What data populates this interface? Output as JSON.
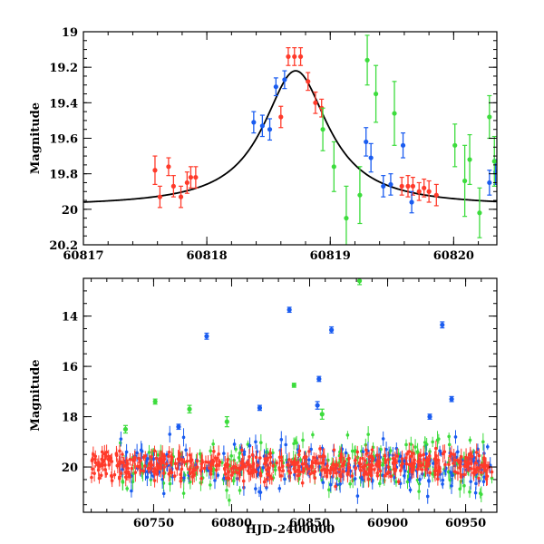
{
  "chart_data": [
    {
      "id": "top",
      "type": "scatter",
      "xlabel": "",
      "ylabel": "Magnitude",
      "xlim": [
        60817,
        60820.35
      ],
      "ylim": [
        19.0,
        20.2
      ],
      "y_inverted": true,
      "x_major_ticks": [
        60817,
        60818,
        60819,
        60820
      ],
      "x_minor_step": 0.2,
      "y_major_ticks": [
        19,
        19.2,
        19.4,
        19.6,
        19.8,
        20,
        20.2
      ],
      "y_minor_step": 0.05,
      "model_curve": {
        "name": "model",
        "color": "#000000",
        "t0": 60818.72,
        "peak_mag": 19.22,
        "base_mag": 19.985,
        "width": 0.32
      },
      "series": [
        {
          "name": "red",
          "color": "#ff3a2a",
          "points": [
            {
              "x": 60817.58,
              "y": 19.78,
              "err": 0.08
            },
            {
              "x": 60817.62,
              "y": 19.93,
              "err": 0.06
            },
            {
              "x": 60817.69,
              "y": 19.76,
              "err": 0.05
            },
            {
              "x": 60817.73,
              "y": 19.87,
              "err": 0.06
            },
            {
              "x": 60817.79,
              "y": 19.93,
              "err": 0.06
            },
            {
              "x": 60817.84,
              "y": 19.85,
              "err": 0.06
            },
            {
              "x": 60817.87,
              "y": 19.82,
              "err": 0.06
            },
            {
              "x": 60817.91,
              "y": 19.82,
              "err": 0.06
            },
            {
              "x": 60818.6,
              "y": 19.48,
              "err": 0.06
            },
            {
              "x": 60818.66,
              "y": 19.14,
              "err": 0.05
            },
            {
              "x": 60818.71,
              "y": 19.14,
              "err": 0.05
            },
            {
              "x": 60818.76,
              "y": 19.14,
              "err": 0.05
            },
            {
              "x": 60818.82,
              "y": 19.28,
              "err": 0.05
            },
            {
              "x": 60818.88,
              "y": 19.4,
              "err": 0.06
            },
            {
              "x": 60818.93,
              "y": 19.43,
              "err": 0.05
            },
            {
              "x": 60819.58,
              "y": 19.87,
              "err": 0.05
            },
            {
              "x": 60819.63,
              "y": 19.87,
              "err": 0.06
            },
            {
              "x": 60819.67,
              "y": 19.87,
              "err": 0.05
            },
            {
              "x": 60819.72,
              "y": 19.9,
              "err": 0.05
            },
            {
              "x": 60819.76,
              "y": 19.88,
              "err": 0.05
            },
            {
              "x": 60819.8,
              "y": 19.9,
              "err": 0.06
            },
            {
              "x": 60819.86,
              "y": 19.92,
              "err": 0.06
            }
          ]
        },
        {
          "name": "blue",
          "color": "#1a5cf0",
          "points": [
            {
              "x": 60818.38,
              "y": 19.51,
              "err": 0.06
            },
            {
              "x": 60818.45,
              "y": 19.53,
              "err": 0.06
            },
            {
              "x": 60818.51,
              "y": 19.55,
              "err": 0.06
            },
            {
              "x": 60818.56,
              "y": 19.31,
              "err": 0.05
            },
            {
              "x": 60818.63,
              "y": 19.27,
              "err": 0.05
            },
            {
              "x": 60819.29,
              "y": 19.62,
              "err": 0.08
            },
            {
              "x": 60819.33,
              "y": 19.71,
              "err": 0.08
            },
            {
              "x": 60819.43,
              "y": 19.87,
              "err": 0.06
            },
            {
              "x": 60819.49,
              "y": 19.86,
              "err": 0.06
            },
            {
              "x": 60819.59,
              "y": 19.64,
              "err": 0.07
            },
            {
              "x": 60819.66,
              "y": 19.96,
              "err": 0.06
            },
            {
              "x": 60820.29,
              "y": 19.85,
              "err": 0.07
            },
            {
              "x": 60820.34,
              "y": 19.79,
              "err": 0.07
            }
          ]
        },
        {
          "name": "green",
          "color": "#3ddc3d",
          "points": [
            {
              "x": 60818.94,
              "y": 19.55,
              "err": 0.12
            },
            {
              "x": 60819.03,
              "y": 19.76,
              "err": 0.14
            },
            {
              "x": 60819.13,
              "y": 20.05,
              "err": 0.18
            },
            {
              "x": 60819.24,
              "y": 19.92,
              "err": 0.16
            },
            {
              "x": 60819.3,
              "y": 19.16,
              "err": 0.14
            },
            {
              "x": 60819.37,
              "y": 19.35,
              "err": 0.16
            },
            {
              "x": 60819.52,
              "y": 19.46,
              "err": 0.18
            },
            {
              "x": 60820.01,
              "y": 19.64,
              "err": 0.12
            },
            {
              "x": 60820.09,
              "y": 19.84,
              "err": 0.2
            },
            {
              "x": 60820.13,
              "y": 19.72,
              "err": 0.14
            },
            {
              "x": 60820.21,
              "y": 20.02,
              "err": 0.14
            },
            {
              "x": 60820.29,
              "y": 19.48,
              "err": 0.12
            },
            {
              "x": 60820.33,
              "y": 19.73,
              "err": 0.14
            }
          ]
        }
      ]
    },
    {
      "id": "bottom",
      "type": "scatter",
      "xlabel": "HJD-2400000",
      "ylabel": "Magnitude",
      "xlim": [
        60705,
        60970
      ],
      "ylim": [
        12.5,
        21.8
      ],
      "y_inverted": true,
      "x_major_ticks": [
        60750,
        60800,
        60850,
        60900,
        60950
      ],
      "x_minor_step": 10,
      "y_major_ticks": [
        14,
        16,
        18,
        20
      ],
      "y_minor_step": 0.5,
      "baseline": {
        "mag": 19.95,
        "x_start_red": 60710,
        "x_start_other": 60728,
        "x_end": 60967
      },
      "series": [
        {
          "name": "green",
          "color": "#3ddc3d",
          "outliers": [
            {
              "x": 60882,
              "y": 12.6,
              "err": 0.15
            },
            {
              "x": 60840,
              "y": 16.75,
              "err": 0.08
            },
            {
              "x": 60751,
              "y": 17.4,
              "err": 0.1
            },
            {
              "x": 60732,
              "y": 18.5,
              "err": 0.15
            },
            {
              "x": 60773,
              "y": 17.7,
              "err": 0.15
            },
            {
              "x": 60858,
              "y": 17.9,
              "err": 0.2
            },
            {
              "x": 60797,
              "y": 18.2,
              "err": 0.2
            }
          ]
        },
        {
          "name": "blue",
          "color": "#1a5cf0",
          "outliers": [
            {
              "x": 60784,
              "y": 14.8,
              "err": 0.12
            },
            {
              "x": 60837,
              "y": 13.75,
              "err": 0.1
            },
            {
              "x": 60864,
              "y": 14.55,
              "err": 0.12
            },
            {
              "x": 60935,
              "y": 14.35,
              "err": 0.12
            },
            {
              "x": 60856,
              "y": 16.5,
              "err": 0.1
            },
            {
              "x": 60941,
              "y": 17.3,
              "err": 0.1
            },
            {
              "x": 60818,
              "y": 17.65,
              "err": 0.1
            },
            {
              "x": 60855,
              "y": 17.55,
              "err": 0.15
            },
            {
              "x": 60927,
              "y": 18.0,
              "err": 0.1
            },
            {
              "x": 60766,
              "y": 18.4,
              "err": 0.1
            }
          ]
        },
        {
          "name": "red",
          "color": "#ff3a2a",
          "outliers": []
        }
      ]
    }
  ]
}
